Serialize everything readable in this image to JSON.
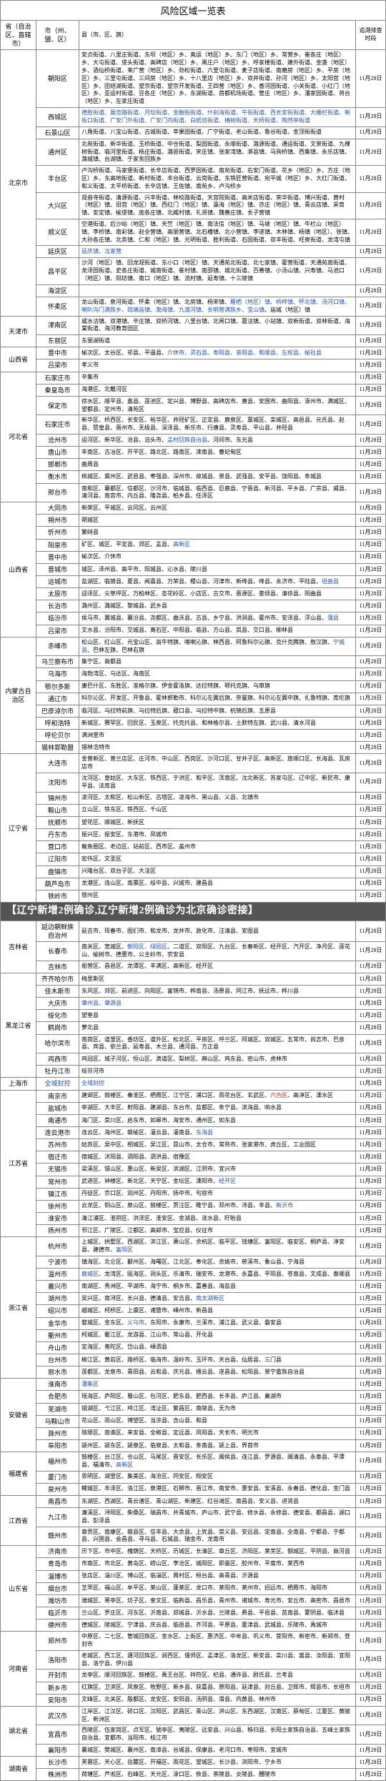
{
  "title": "风险区域一览表",
  "headers": [
    "省（自治区、直辖市）",
    "市（州、盟、区）",
    "县（市、区、旗）",
    "追溯排查时段"
  ],
  "banner": "【辽宁新增2例确诊,辽宁新增2例确诊为北京确诊密接】",
  "default_date": "11月28日",
  "rows": [
    {
      "prov": "北京市",
      "prov_span": 11,
      "city": "朝阳区",
      "detail": "安贞街道、八里庄街道、东坝（地区）乡、奥运（地区）乡、东门（地区）乡、常营乡、崔各庄（地区）乡、大屯街道、垡头街道、高碑店（地区）乡、黑庄户（地区）乡、呼家楼街道、建外街道、金盏（地区）乡、酒仙桥街道、来广营（地区）乡、劲松街道、六里屯街道、麦子店街道、南磨房（地区）乡、平房（地区）乡、三里屯街道、三间房（地区）乡、十八里店（地区）乡、双井街道、孙河（地区）乡、太阳宫（地区）乡、团结湖街道、望京街道、望京开发街道、王四营（地区）乡、香河园街道、小关街道、小红门（地区）乡、亚运村街道、豆各庄（地区）乡、东湖街道、首都机场街道、管庄（地区）乡、潘家园街道、将台（地区）乡、左家庄街道"
    },
    {
      "city": "西城区",
      "detail_html": "<span class='hl-blue'>德胜街道、展览路街道、月坛街道、金融街街道、什刹海街道、牛街街道、西长安街街道、大栅栏街道、新街口街道、广安门外街道、广安门内街道、白纸坊街道、椿树街道、天桥街道、陶然亭街道</span>"
    },
    {
      "city": "石景山区",
      "detail": "八角街道、八宝山街道、古城街道、苹果园街道、广宁街道、老山街道、鲁谷街道、金顶街街道"
    },
    {
      "city": "通州区",
      "detail": "北苑街道、新华街道、玉桥街道、中仓街道、梨园街道、永顺街道、潞源街道、通运街道、文景街道、九棵树街道、临河里街道、杨庄街道、潞邑街道、宋庄镇、张家湾镇、漷县镇、马驹桥镇、西集镇、永乐店镇、潞城镇、台湖镇、于家务回族乡"
    },
    {
      "city": "丰台区",
      "detail": "卢沟桥街道、马家堡街道、长辛店街道、西罗园街道、南苑街道、右安门街道、花乡（地区）乡、方庄（地区）乡、东高地街道、新村街道、丰台街道、云岗街道、东铁匠营街道、宛平城（地区）乡、大红门街道、和义街道、太平桥街道、长辛店镇、王佐镇、南苑乡、卢沟桥乡"
    },
    {
      "city": "大兴区",
      "detail": "观音寺街道、清源街道、兴丰街道、林校路街道、天宫院街道、高米店街道、荣华街道、博兴街道、黄村（地区）镇、旧宫（地区）镇、西红门（地区）镇、瀛海（地区）镇、亦庄（地区）镇、青云店镇、采育镇、安定镇、榆垡镇、庞各庄镇、北臧村镇、礼贤镇、魏善庄镇、长子营镇"
    },
    {
      "city": "顺义区",
      "detail": "空港街道、后沙峪（地区）镇、天竺（地区）镇、南法信（地区）镇、马坡（地区）镇、牛栏山（地区）镇、李桥镇、南彩镇、赵全营镇、高丽营镇、北石槽镇、北小营镇、李遂镇、木林镇、杨镇（地区）、张镇、大孙各庄镇、北务镇、仁和（地区）镇、光明街道、胜利街道、石园街道、双丰街道、旺泉街道、龙湾屯镇"
    },
    {
      "city": "延庆区",
      "detail_html": "<span class='hl-blue'>延庆镇、沈家营</span>"
    },
    {
      "city": "昌平区",
      "detail": "沙河（地区）镇、回龙观街道、东小口（地区）镇、天通苑北街道、北七家镇、霍营街道、天通苑南街道、龙泽园街道、史各庄街道、城南街道、崔村镇、南邵镇、城北街道、百善镇、小汤山镇、兴寿镇、马池口（地区）镇、阳坊镇、南口（地区）镇、流村镇、延寿镇、十三陵镇"
    },
    {
      "city": "海淀区",
      "detail": ""
    },
    {
      "city": "怀柔区",
      "detail_html": "龙山街道、泉河街道、怀柔（地区）镇、北房镇、杨宋镇、<span class='hl-blue'>雁栖（地区）镇、桥梓镇、怀北镇、汤河口镇、喇叭沟门满族乡、琉璃庙镇、渤海镇、九渡河镇、长哨营满族乡、宝山镇</span>、庙城（地区）镇"
    },
    {
      "prov": "天津市",
      "prov_span": 2,
      "city": "津南区",
      "detail": "咸水沽镇、双港镇、辛庄镇、双桥河镇、八里台镇、北闸口镇、葛沽镇、小站镇、双新街道、双林街道、海棠街道、海河教育园区"
    },
    {
      "city": "东丽区",
      "detail": "东丽湖街道"
    },
    {
      "prov": "山西省",
      "prov_span": 2,
      "city": "晋中市",
      "detail_html": "榆次区、太谷区、祁县、平遥县、<span class='hl-blue'>介休市、灵石县、寿阳县、昔阳县、和顺县、左权县、榆社县</span>"
    },
    {
      "city": "吕梁市",
      "detail": "孝义市"
    },
    {
      "prov": "河北省",
      "prov_span": 9,
      "city": "石家庄市",
      "detail": "辛集市"
    },
    {
      "city": "秦皇岛市",
      "detail": "海港区、北戴河区"
    },
    {
      "city": "保定市",
      "detail": "徐水区、顺平县、蠡县、莲池区、定兴县、博野县、高碑店市、唐县、安国市、曲阳县、涿州市、满城区、望都县、定州市、清苑区"
    },
    {
      "city": "石家庄市",
      "detail": "新华区、桥西区、长安区、裕华区、井陉矿区、正定县、鹿泉区、藁城区、栾城区、高邑县、元氏县、赵县、赞皇县、晋州市、无极县、深泽县、新乐市、行唐县、灵寿县、平山县、井陉县"
    },
    {
      "city": "沧州市",
      "detail_html": "运河区、新华区、沧县、泊头市、<span class='hl-blue'>孟村回族自治县</span>、河间市、东光县"
    },
    {
      "city": "唐山市",
      "detail": "丰南区、古冶区、开平区、路北区、路南区、滦南县、曹妃甸区"
    },
    {
      "city": "邯郸市",
      "detail": "曲周县"
    },
    {
      "city": "衡水市",
      "detail": "桃城区、冀州区、武邑县、枣强县、深州市、故城县、景县、武强县、安平县、饶阳县、阜城县"
    },
    {
      "city": "邢台市",
      "detail": "南和区、襄都区、信都区、沙河市、临城县、临西县、巨鹿县、宁晋县、新河县、平乡县、广宗县、威县、清河县、南宫市、内丘县、隆尧县、柏乡县、任泽区"
    },
    {
      "prov": "山西省",
      "prov_span": 11,
      "city": "大同市",
      "detail": "新荣区、平城区、云冈区、云州区"
    },
    {
      "city": "朔州市",
      "detail": "朔城区"
    },
    {
      "city": "忻州市",
      "detail": "繁峙县"
    },
    {
      "city": "阳泉市",
      "detail_html": "矿区、城区、平定县、郊区、盂县、<span class='hl-blue'>高新区</span>"
    },
    {
      "city": "晋中市",
      "detail": "榆次区、介休市"
    },
    {
      "city": "晋城市",
      "detail": "城区、泽州县、高平市、阳城县、沁水县、陵川县"
    },
    {
      "city": "运城市",
      "detail_html": "盐湖区、临猗县、夏县、闻喜县、万荣县、稷山县、河津市、新绛县、绛县、永济市、平陆县、<span class='hl-blue'>垣曲县</span>"
    },
    {
      "city": "太原市",
      "detail": "迎泽区、尖草坪区、万柏林区、杏花岭区、小店区、古交市、晋源区、娄烦县、清徐县、阳曲县"
    },
    {
      "city": "长治市",
      "detail": "潞州区、潞城区、黎城县、武乡县"
    },
    {
      "city": "临汾市",
      "detail_html": "侯马市、翼城县、襄汾县、尧都区、曲沃县、古县、乡宁县、洪洞县、霍州市、安泽县、浮山县、<span class='hl-blue'>蒲县</span>"
    },
    {
      "city": "吕梁市",
      "detail": "文水县、汾阳市、交城县、离石区、中阳县、临县、方山县、岚县、交口县、柳林县"
    },
    {
      "prov": "内蒙古自治区",
      "prov_span": 9,
      "city": "赤峰市",
      "detail_html": "松山区、红山区、元宝山区、翁牛特旗、喀喇沁旗、林西县、阿鲁科尔沁旗、克什克腾旗、敖汉旗、<span class='hl-blue'>宁城县</span>、巴林左旗、巴林右旗"
    },
    {
      "city": "乌兰察布市",
      "detail": "集宁区、商都县"
    },
    {
      "city": "乌海市",
      "detail": "海勃湾区、乌达区、海南区"
    },
    {
      "city": "鄂尔多斯",
      "detail": "康巴什区、东胜区、准格尔旗、伊金霍洛旗、达拉特旗、鄂托克旗、乌审旗"
    },
    {
      "city": "通辽市",
      "detail": "科尔沁区、开发区、开鲁县、霍林郭勒市、科尔沁左翼后旗、奈曼旗、科尔沁左翼中旗、扎鲁特旗、库伦旗"
    },
    {
      "city": "巴彦淖尔市",
      "detail": "临河区、乌拉特前旗、乌拉特后旗、磴口县、乌拉特中旗、杭锦后旗、五原县"
    },
    {
      "city": "呼和浩特",
      "detail": "新城区、赛罕区、回民区、玉泉区、托克托县、和林格尔县、土默特左旗、武川县、清水河县"
    },
    {
      "city": "呼伦贝尔",
      "detail": "满洲里市"
    },
    {
      "city": "锡林郭勒盟",
      "detail": "锡林浩特市"
    },
    {
      "prov": "辽宁省",
      "prov_span": 11,
      "city": "大连市",
      "detail": "金普新区、普兰店区、庄河市、中山区、西岗区、沙河口区、甘井子区、高新区、旅顺口区、长海县、瓦房店市"
    },
    {
      "city": "沈阳市",
      "detail": "沈河区、皇姑区、大东区、铁西区、于洪区、和平区、浑南区、沈北新区、苏家屯区、辽中区、新民市、康平县、法库县"
    },
    {
      "city": "锦州市",
      "detail": "凌河区、太和区、松山新区、古塔区、凌海市、黑山县、义县、北镇市"
    },
    {
      "city": "鞍山市",
      "detail": "立山区、铁东区、铁西区、千山区"
    },
    {
      "city": "抚顺市",
      "detail": "望花区、顺城区、新抚区"
    },
    {
      "city": "丹东市",
      "detail": "振兴区、振安区、东港市、凤城市"
    },
    {
      "city": "营口市",
      "detail": "鲅鱼圈区、老边区、站前区、西市区、盖州市"
    },
    {
      "city": "辽阳市",
      "detail": "宏伟区、文圣区"
    },
    {
      "city": "盘锦市",
      "detail": "兴隆台区、双台子区、大洼区"
    },
    {
      "city": "葫芦岛市",
      "detail": "龙港区、连山区、南票区、绥中县、兴城市、建昌县"
    },
    {
      "city": "铁岭市",
      "detail": "银州区"
    },
    {
      "prov": "吉林省",
      "prov_span": 3,
      "city": "延边朝鲜族自治州",
      "detail": "延吉市、珲春市、图们市、和龙市、龙井市、敦化市、汪清县、安图县",
      "banner_before": true
    },
    {
      "city": "长春市",
      "detail_html": "南关区、宽城区、<span class='hl-blue'>朝阳区、绿园区</span>、二道区、双阳区、九台区、长春新区、经开区、汽开区、净月区、莲花山、榆树市、德惠市、公主岭市、农安县"
    },
    {
      "city": "吉林市",
      "detail": "船营区、昌邑区、龙潭区、丰满区、高新区、经开区"
    },
    {
      "prov": "黑龙江省",
      "prov_span": 8,
      "city": "齐齐哈尔市",
      "detail": "梅里斯区"
    },
    {
      "city": "佳木斯市",
      "detail": "东风区、郊区、前进区、向阳区、富锦市、桦南县、汤原县、同江市、抚远市、桦川县"
    },
    {
      "city": "大庆市",
      "detail_html": "<span class='hl-blue'>肇州县、肇源县</span>"
    },
    {
      "city": "绥化市",
      "detail": "望奎县"
    },
    {
      "city": "鹤岗市",
      "detail": "萝北县"
    },
    {
      "city": "哈尔滨市",
      "detail": "南岗区、道里区、香坊区、道外区、松北区、平房区、呼兰区、阿城区、双城区、五常市、尚志市、巴彦县、宾县、依兰县、延寿县、木兰县、通河县、方正县"
    },
    {
      "city": "鸡西市",
      "detail": "鸡冠区、城子河区、恒山区、滴道区、梨树区、麻山区、鸡东县、密山市、虎林市"
    },
    {
      "city": "牡丹江市",
      "detail": "绥芬河市"
    },
    {
      "prov": "上海市",
      "prov_span": 1,
      "city_html": "<span class='hl-blue'>全域封控</span>",
      "detail_html": "<span class='hl-blue'>全域封控</span>"
    },
    {
      "prov": "江苏省",
      "prov_span": 12,
      "city": "南京市",
      "detail_html": "建邺区、鼓楼区、秦淮区、栖霞区、江宁区、浦口区、雨花台区、玄武区、<span class='hl-red'>六合区</span>、高淳区、溧水区"
    },
    {
      "city": "盐城市",
      "detail": "亭湖区、大丰区、射阳县、建湖县、东台市、盐都区、阜宁县、滨海县、响水县"
    },
    {
      "city": "南通市",
      "detail": "海门区、崇川区、启东市、如皋市、海安市、通州区、如东县"
    },
    {
      "city": "连云港市",
      "detail_html": "连云区、海州区、赣榆区、灌云县、灌南县、<span class='hl-blue'>东海县</span>"
    },
    {
      "city": "苏州市",
      "detail": "姑苏区、吴中区、相城区、吴江区、昆山市、太仓市、常熟市、张家港市、虎丘区、工业园区"
    },
    {
      "city": "宿迁市",
      "detail": "宿城区、沭阳县、泗阳县、泗洪县、宿豫区"
    },
    {
      "city": "无锡市",
      "detail": "梁溪区、锡山区、惠山区、新吴区、滨湖区、江阴市、宜兴市"
    },
    {
      "city": "常州市",
      "detail_html": "武进区、钟楼区、新北区、天宁区、金坛区、溧阳市、<span class='hl-blue'>经开区</span>"
    },
    {
      "city": "镇江市",
      "detail": "丹徒区、京口区、润州区、丹阳市、扬中市、句容市"
    },
    {
      "city": "徐州市",
      "detail_html": "云龙区、铜山区、泉山区、鼓楼区、贾汪区、睢宁县、邳州市、沛县、丰县、<span class='hl-blue'>新沂市</span>"
    },
    {
      "city": "淮安市",
      "detail": "清江浦区、淮阴区、洪泽区、淮安区、金湖县、涟水县、盱眙县"
    },
    {
      "city": "扬州市",
      "detail": "邗江区、广陵区、江都区、高邮市、宝应县、仪征市"
    },
    {
      "prov": "浙江省",
      "prov_span": 11,
      "city": "杭州市",
      "detail_html": "上城区、拱墅区、西湖区、滨江区、萧山区、余杭区、临平区、钱塘区、富阳区、临安区、桐庐县、淳安县、建德市、<span class='hl-blue'>富阳区</span>"
    },
    {
      "city": "宁波市",
      "detail": "镇海区、北仑区、鄞州区、海曙区、江北区、奉化区、余姚市、慈溪市、象山县、宁海县"
    },
    {
      "city": "温州市",
      "detail_html": "<span class='hl-blue'>鹿城区</span>、龙湾区、瓯海区、洞头区、乐清市、瑞安市、龙港市、永嘉县、平阳县、苍南县、文成县、泰顺县"
    },
    {
      "city": "嘉兴市",
      "detail": "南湖区、秀洲区、平湖市、海宁市、桐乡市、嘉善县、海盐县"
    },
    {
      "city": "湖州市",
      "detail_html": "吴兴区、南浔区、长兴县、德清县、安吉县、<span class='hl-blue'>南太湖新区</span>"
    },
    {
      "city": "绍兴市",
      "detail": "越城区、柯桥区、上虞区、诸暨市、嵊州市、新昌县"
    },
    {
      "city": "金华市",
      "detail_html": "婺城区、金东区、<span class='hl-blue'>义乌市</span>、东阳市、永康市、兰溪市、浦江县、武义县、磐安县"
    },
    {
      "city": "衢州市",
      "detail": "柯城区、衢江区、龙游县、江山市、常山县、开化县"
    },
    {
      "city": "舟山市",
      "detail": "定海区、普陀区、岱山县、嵊泗县"
    },
    {
      "city": "台州市",
      "detail": "椒江区、黄岩区、路桥区、临海市、温岭市、玉环市、天台县、仙居县、三门县"
    },
    {
      "city": "丽水市",
      "detail": "莲都区、龙泉市、青田县、云和县、庆元县、缙云县、遂昌县、松阳县、景宁畲族自治县"
    },
    {
      "prov": "安徽省",
      "prov_span": 6,
      "city": "淮南市",
      "detail_html": "<span class='hl-blue'>潘集区</span>"
    },
    {
      "city": "合肥市",
      "detail": "瑶海区、庐阳区、蜀山区、包河区、肥东县、肥西县、长丰县、庐江县、巢湖市"
    },
    {
      "city": "芜湖市",
      "detail": "镜湖区、弋江区、鸠江区、湾沚区、繁昌区、南陵县、无为市"
    },
    {
      "city": "马鞍山市",
      "detail": "花山区、雨山区、博望区、当涂县、含山县、和县"
    },
    {
      "city": "滁州市",
      "detail": "琅琊区、南谯区、来安县、全椒县、定远县、凤阳县、天长市、明光市"
    },
    {
      "city": "阜阳市",
      "detail": "颍州区、颍东区、颍泉区、临泉县、太和县、阜南县、颍上县、界首市"
    },
    {
      "prov": "福建省",
      "prov_span": 3,
      "city": "福州市",
      "detail_html": "鼓楼区、台江区、仓山区、马尾区、晋安区、长乐区、闽侯县、连江县、罗源县、闽清县、永泰县、平潭县、福清市、<span class='hl-blue'>高新区</span>"
    },
    {
      "city": "厦门市",
      "detail": "思明区、湖里区、集美区、海沧区、同安区、翔安区"
    },
    {
      "city": "泉州市",
      "detail": "鲤城区、丰泽区、洛江区、泉港区、石狮市、晋江市、南安市、惠安县、安溪县、永春县、德化县、金门县"
    },
    {
      "prov": "江西省",
      "prov_span": 3,
      "city": "南昌市",
      "detail": "东湖区、西湖区、青云谱区、青山湖区、新建区、红谷滩区、南昌县、安义县、进贤县"
    },
    {
      "city": "九江市",
      "detail": "濂溪区、浔阳区、柴桑区、瑞昌市、共青城市、庐山市、武宁县、修水县、永修县、德安县、都昌县、湖口县、彭泽县"
    },
    {
      "city": "赣州市",
      "detail": "章贡区、南康区、赣县区、信丰县、大余县、上犹县、崇义县、安远县、定南县、全南县、宁都县、于都县、兴国县、会昌县、寻乌县、石城县、瑞金市、龙南市"
    },
    {
      "prov": "山东省",
      "prov_span": 7,
      "city": "济南市",
      "detail": "历下区、市中区、槐荫区、天桥区、历城区、长清区、章丘区、济阳区、莱芜区、钢城区、平阴县、商河县"
    },
    {
      "city": "青岛市",
      "detail": "市南区、市北区、黄岛区、崂山区、李沧区、城阳区、即墨区、胶州市、平度市、莱西市"
    },
    {
      "city": "淄博市",
      "detail": "张店区、淄川区、博山区、临淄区、周村区、桓台县、高青县、沂源县"
    },
    {
      "city": "烟台市",
      "detail": "芝罘区、福山区、牟平区、莱山区、蓬莱区、龙口市、莱阳市、莱州市、招远市、栖霞市、海阳市"
    },
    {
      "city": "潍坊市",
      "detail": "潍城区、寒亭区、坊子区、奎文区、临朐县、昌乐县、青州市、诸城市、寿光市、安丘市、高密市、昌邑市"
    },
    {
      "city": "临沂市",
      "detail": "兰山区、罗庄区、河东区、沂南县、郯城县、沂水县、兰陵县、费县、平邑县、莒南县、蒙阴县、临沭县"
    },
    {
      "city": "德州市",
      "detail": "德城区、陵城区、宁津县、庆云县、临邑县、齐河县、平原县、夏津县、武城县、乐陵市、禹城市"
    },
    {
      "prov": "河南省",
      "prov_span": 5,
      "city": "郑州市",
      "detail": "中原区、二七区、管城回族区、金水区、上街区、惠济区、中牟县、巩义市、荥阳市、新密市、新郑市、登封市"
    },
    {
      "city": "洛阳市",
      "detail": "老城区、西工区、瀍河回族区、涧西区、偃师区、孟津区、洛龙区、新安县、栾川县、嵩县、汝阳县、宜阳县、洛宁县、伊川县"
    },
    {
      "city": "开封市",
      "detail": "龙亭区、顺河回族区、鼓楼区、禹王台区、祥符区、杞县、通许县、尉氏县、兰考县"
    },
    {
      "city": "新乡市",
      "detail": "红旗区、卫滨区、凤泉区、牧野区、新乡县、获嘉县、原阳县、延津县、封丘县、卫辉市、辉县市、长垣市"
    },
    {
      "city": "安阳市",
      "detail": "文峰区、北关区、殷都区、龙安区、安阳县、汤阴县、滑县、内黄县、林州市"
    },
    {
      "prov": "湖北省",
      "prov_span": 3,
      "city": "武汉市",
      "detail": "江岸区、江汉区、硚口区、汉阳区、武昌区、青山区、洪山区、东西湖区、汉南区、蔡甸区、江夏区、黄陂区、新洲区"
    },
    {
      "city": "宜昌市",
      "detail": "西陵区、伍家岗区、点军区、猇亭区、夷陵区、远安县、兴山县、秭归县、长阳土家族自治县、五峰土家族自治县、宜都市、当阳市、枝江市"
    },
    {
      "city": "襄阳市",
      "detail": "襄城区、樊城区、襄州区、南漳县、谷城县、保康县、老河口市、枣阳市、宜城市"
    },
    {
      "prov": "湖南省",
      "prov_span": 2,
      "city": "长沙市",
      "detail": "芙蓉区、天心区、岳麓区、开福区、雨花区、望城区、长沙县、浏阳市、宁乡市"
    },
    {
      "city": "株洲市",
      "detail": "荷塘区、芦淞区、石峰区、天元区、渌口区、攸县、茶陵县、炎陵县、醴陵市"
    }
  ]
}
